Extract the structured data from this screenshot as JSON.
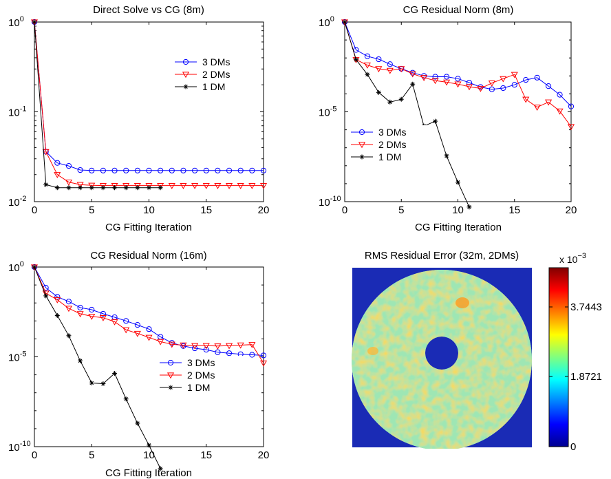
{
  "chart_data": [
    {
      "type": "line",
      "title": "Direct Solve vs CG (8m)",
      "xlabel": "CG Fitting Iteration",
      "ylabel": "",
      "yscale": "log",
      "xlim": [
        0,
        20
      ],
      "ylim": [
        0.01,
        1
      ],
      "x_ticks": [
        "0",
        "5",
        "10",
        "15",
        "20"
      ],
      "y_ticks": [
        {
          "base": "10",
          "exp": "0"
        },
        {
          "base": "10",
          "exp": "-1"
        },
        {
          "base": "10",
          "exp": "-2"
        }
      ],
      "legend_position": "upper-right",
      "legend": [
        "3  DMs",
        "2  DMs",
        "1  DM"
      ],
      "series": [
        {
          "name": "3  DMs",
          "color": "#0000ff",
          "marker": "circle",
          "x": [
            0,
            1,
            2,
            3,
            4,
            5,
            6,
            7,
            8,
            9,
            10,
            11,
            12,
            13,
            14,
            15,
            16,
            17,
            18,
            19,
            20
          ],
          "y": [
            1,
            0.036,
            0.027,
            0.025,
            0.0225,
            0.0222,
            0.0222,
            0.0222,
            0.0222,
            0.0222,
            0.0222,
            0.0222,
            0.0222,
            0.0222,
            0.0222,
            0.0222,
            0.0222,
            0.0222,
            0.0222,
            0.0222,
            0.0222
          ]
        },
        {
          "name": "2  DMs",
          "color": "#ff0000",
          "marker": "triangle-down",
          "x": [
            0,
            1,
            2,
            3,
            4,
            5,
            6,
            7,
            8,
            9,
            10,
            11,
            12,
            13,
            14,
            15,
            16,
            17,
            18,
            19,
            20
          ],
          "y": [
            1,
            0.036,
            0.02,
            0.0165,
            0.0155,
            0.0152,
            0.0151,
            0.0151,
            0.0151,
            0.0151,
            0.0151,
            0.0151,
            0.0151,
            0.0151,
            0.0151,
            0.0151,
            0.0151,
            0.0151,
            0.0151,
            0.0151,
            0.0151
          ]
        },
        {
          "name": "1  DM",
          "color": "#000000",
          "marker": "star",
          "x": [
            0,
            1,
            2,
            3,
            4,
            5,
            6,
            7,
            8,
            9,
            10,
            11
          ],
          "y": [
            1,
            0.0155,
            0.0143,
            0.0143,
            0.0143,
            0.0143,
            0.0143,
            0.0143,
            0.0143,
            0.0143,
            0.0143,
            0.0143
          ]
        }
      ]
    },
    {
      "type": "line",
      "title": "CG Residual Norm (8m)",
      "xlabel": "CG Fitting Iteration",
      "ylabel": "",
      "yscale": "log",
      "xlim": [
        0,
        20
      ],
      "ylim": [
        1e-10,
        1
      ],
      "x_ticks": [
        "0",
        "5",
        "10",
        "15",
        "20"
      ],
      "y_ticks": [
        {
          "base": "10",
          "exp": "0"
        },
        {
          "base": "10",
          "exp": "-5"
        },
        {
          "base": "10",
          "exp": "-10"
        }
      ],
      "legend_position": "middle-left",
      "legend": [
        "3  DMs",
        "2  DMs",
        "1  DM"
      ],
      "series": [
        {
          "name": "3  DMs",
          "color": "#0000ff",
          "marker": "circle",
          "x": [
            0,
            1,
            2,
            3,
            4,
            5,
            6,
            7,
            8,
            9,
            10,
            11,
            12,
            13,
            14,
            15,
            16,
            17,
            18,
            19,
            20
          ],
          "y": [
            1,
            0.028,
            0.0125,
            0.0085,
            0.0045,
            0.0025,
            0.0015,
            0.001,
            0.0009,
            0.0009,
            0.0007,
            0.00042,
            0.00024,
            0.00018,
            0.00021,
            0.00032,
            0.0006,
            0.0008,
            0.00027,
            9e-05,
            2e-05
          ]
        },
        {
          "name": "2  DMs",
          "color": "#ff0000",
          "marker": "triangle-down",
          "x": [
            0,
            1,
            2,
            3,
            4,
            5,
            6,
            7,
            8,
            9,
            10,
            11,
            12,
            13,
            14,
            15,
            16,
            17,
            18,
            19,
            20
          ],
          "y": [
            1,
            0.008,
            0.004,
            0.0025,
            0.002,
            0.0025,
            0.0013,
            0.0008,
            0.00055,
            0.00045,
            0.00035,
            0.00025,
            0.0002,
            0.0004,
            0.0007,
            0.0012,
            5e-05,
            1.8e-05,
            3.5e-05,
            1.1e-05,
            1.5e-06
          ]
        },
        {
          "name": "1  DM",
          "color": "#000000",
          "marker": "star",
          "x": [
            0,
            1,
            2,
            3,
            4,
            5,
            6,
            7,
            8,
            9,
            10,
            11
          ],
          "y": [
            1,
            0.008,
            0.0012,
            0.00012,
            3.5e-05,
            5e-05,
            0.00035,
            1.6e-06,
            3e-06,
            3.5e-08,
            1.2e-09,
            5e-11
          ]
        }
      ]
    },
    {
      "type": "line",
      "title": "CG Residual Norm (16m)",
      "xlabel": "CG Fitting Iteration",
      "ylabel": "",
      "yscale": "log",
      "xlim": [
        0,
        20
      ],
      "ylim": [
        1e-10,
        1
      ],
      "x_ticks": [
        "0",
        "5",
        "10",
        "15",
        "20"
      ],
      "y_ticks": [
        {
          "base": "10",
          "exp": "0"
        },
        {
          "base": "10",
          "exp": "-5"
        },
        {
          "base": "10",
          "exp": "-10"
        }
      ],
      "legend_position": "lower-right",
      "legend": [
        "3  DMs",
        "2  DMs",
        "1  DM"
      ],
      "series": [
        {
          "name": "3  DMs",
          "color": "#0000ff",
          "marker": "circle",
          "x": [
            0,
            1,
            2,
            3,
            4,
            5,
            6,
            7,
            8,
            9,
            10,
            11,
            12,
            13,
            14,
            15,
            16,
            17,
            18,
            19,
            20
          ],
          "y": [
            1,
            0.07,
            0.022,
            0.012,
            0.0055,
            0.0042,
            0.0025,
            0.0016,
            0.001,
            0.0006,
            0.00035,
            0.00013,
            6e-05,
            4e-05,
            3e-05,
            2.5e-05,
            1.8e-05,
            1.6e-05,
            1.4e-05,
            1.3e-05,
            1.2e-05
          ]
        },
        {
          "name": "2  DMs",
          "color": "#ff0000",
          "marker": "triangle-down",
          "x": [
            0,
            1,
            2,
            3,
            4,
            5,
            6,
            7,
            8,
            9,
            10,
            11,
            12,
            13,
            14,
            15,
            16,
            17,
            18,
            19,
            20
          ],
          "y": [
            1,
            0.035,
            0.015,
            0.005,
            0.0025,
            0.0018,
            0.0015,
            0.0009,
            0.00032,
            0.0002,
            0.00012,
            7e-05,
            5e-05,
            4.5e-05,
            4.2e-05,
            4.2e-05,
            4e-05,
            4.2e-05,
            4.5e-05,
            4.8e-05,
            4.5e-06
          ]
        },
        {
          "name": "1  DM",
          "color": "#000000",
          "marker": "star",
          "x": [
            0,
            1,
            2,
            3,
            4,
            5,
            6,
            7,
            8,
            9,
            10,
            11
          ],
          "y": [
            1,
            0.025,
            0.002,
            0.00015,
            6e-06,
            3.5e-07,
            3.2e-07,
            1.2e-06,
            4.5e-08,
            2e-09,
            1.2e-10,
            6e-12
          ]
        }
      ]
    },
    {
      "type": "heatmap",
      "title": "RMS Residual Error (32m, 2DMs)",
      "colorbar_ticks": [
        "3.7443",
        "1.8721",
        "0"
      ],
      "colorbar_multiplier": {
        "prefix": "x 10",
        "exp": "−3"
      },
      "colormap": "jet",
      "background_color": "#00008f",
      "mask": "annulus"
    }
  ]
}
